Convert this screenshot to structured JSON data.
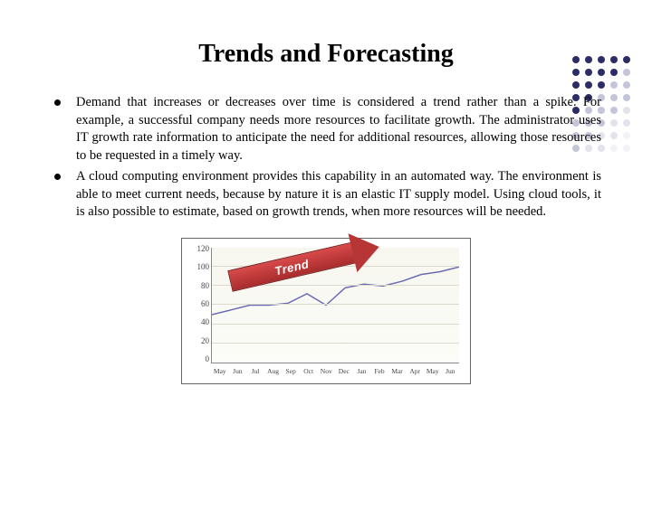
{
  "decor": {
    "dot_colors": [
      "#2d2d66",
      "#2d2d66",
      "#2d2d66",
      "#2d2d66",
      "#2d2d66",
      "#2d2d66",
      "#2d2d66",
      "#2d2d66",
      "#2d2d66",
      "#c5c5da",
      "#2d2d66",
      "#2d2d66",
      "#2d2d66",
      "#c5c5da",
      "#c5c5da",
      "#2d2d66",
      "#2d2d66",
      "#c5c5da",
      "#c5c5da",
      "#c5c5da",
      "#2d2d66",
      "#c5c5da",
      "#c5c5da",
      "#c5c5da",
      "#e3e3ed",
      "#c5c5da",
      "#c5c5da",
      "#c5c5da",
      "#e3e3ed",
      "#e3e3ed",
      "#c5c5da",
      "#c5c5da",
      "#e3e3ed",
      "#e3e3ed",
      "#f2f2f7",
      "#c5c5da",
      "#e3e3ed",
      "#e3e3ed",
      "#f2f2f7",
      "#f2f2f7"
    ]
  },
  "title": "Trends and Forecasting",
  "bullets": [
    "Demand that increases or decreases over time is considered a trend rather than a spike. For example, a successful company needs more resources to facilitate growth. The administrator uses IT growth rate information to anticipate the need for additional resources, allowing those resources to be requested in a timely way.",
    "A cloud computing environment provides this capability in an automated way. The environment is able to meet current needs, because by nature it is an elastic IT supply model. Using cloud tools, it is also possible to estimate, based on growth trends, when more resources will be needed."
  ],
  "chart": {
    "type": "line",
    "y_ticks": [
      0,
      20,
      40,
      60,
      80,
      100,
      120
    ],
    "ylim": [
      0,
      120
    ],
    "x_labels": [
      "May",
      "Jun",
      "Jul",
      "Aug",
      "Sep",
      "Oct",
      "Nov",
      "Dec",
      "Jan",
      "Feb",
      "Mar",
      "Apr",
      "May",
      "Jun"
    ],
    "values": [
      50,
      55,
      60,
      60,
      62,
      72,
      60,
      78,
      82,
      80,
      85,
      92,
      95,
      100
    ],
    "line_color": "#6b6bb3",
    "line_width": 1.5,
    "grid_color": "#d9d9cc",
    "plot_bg": "#f9f9f0",
    "border_color": "#888888",
    "tick_fontsize": 9,
    "trend_label": "Trend",
    "trend_color": "#b83535",
    "trend_text_color": "#ffffff"
  }
}
